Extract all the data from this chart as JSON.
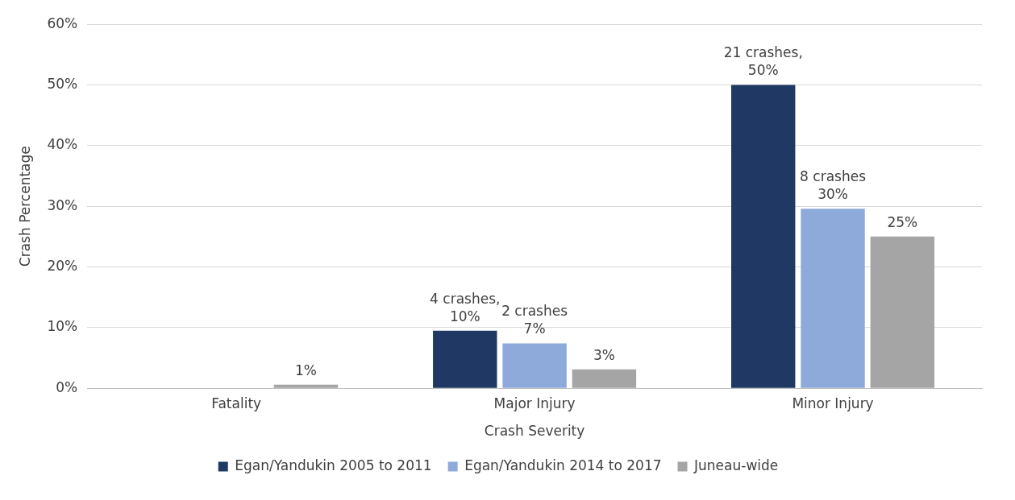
{
  "chart_data": {
    "type": "bar",
    "xlabel": "Crash Severity",
    "ylabel": "Crash Percentage",
    "categories": [
      "Fatality",
      "Major Injury",
      "Minor Injury"
    ],
    "series": [
      {
        "name": "Egan/Yandukin 2005 to 2011",
        "color": "#203864",
        "values": [
          0,
          9.5,
          50
        ],
        "value_labels": [
          null,
          "4 crashes,\n10%",
          "21 crashes,\n50%"
        ]
      },
      {
        "name": "Egan/Yandukin 2014 to 2017",
        "color": "#8eaadb",
        "values": [
          0,
          7.4,
          29.6
        ],
        "value_labels": [
          null,
          "2 crashes\n7%",
          "8 crashes\n30%"
        ]
      },
      {
        "name": "Juneau-wide",
        "color": "#a5a5a5",
        "values": [
          0.6,
          3.1,
          25
        ],
        "value_labels": [
          "1%",
          "3%",
          "25%"
        ]
      }
    ],
    "ylim": [
      0,
      60
    ],
    "yticks": [
      {
        "value": 0,
        "label": "0%"
      },
      {
        "value": 10,
        "label": "10%"
      },
      {
        "value": 20,
        "label": "20%"
      },
      {
        "value": 30,
        "label": "30%"
      },
      {
        "value": 40,
        "label": "40%"
      },
      {
        "value": 50,
        "label": "50%"
      },
      {
        "value": 60,
        "label": "60%"
      }
    ],
    "grid": "y",
    "legend": "bottom"
  }
}
